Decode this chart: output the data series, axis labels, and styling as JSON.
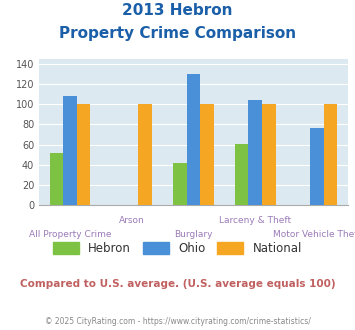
{
  "title_line1": "2013 Hebron",
  "title_line2": "Property Crime Comparison",
  "categories": [
    "All Property Crime",
    "Arson",
    "Burglary",
    "Larceny & Theft",
    "Motor Vehicle Theft"
  ],
  "x_labels_top": [
    "",
    "Arson",
    "",
    "Larceny & Theft",
    ""
  ],
  "x_labels_bottom": [
    "All Property Crime",
    "",
    "Burglary",
    "",
    "Motor Vehicle Theft"
  ],
  "series": {
    "Hebron": [
      52,
      0,
      42,
      61,
      0
    ],
    "Ohio": [
      108,
      0,
      130,
      104,
      76
    ],
    "National": [
      100,
      100,
      100,
      100,
      100
    ]
  },
  "colors": {
    "Hebron": "#7dc242",
    "Ohio": "#4a90d9",
    "National": "#f5a623"
  },
  "ylim": [
    0,
    145
  ],
  "yticks": [
    0,
    20,
    40,
    60,
    80,
    100,
    120,
    140
  ],
  "plot_bg": "#dce9f0",
  "title_color": "#1a5fa8",
  "xlabel_color": "#9b7bb8",
  "footer_text": "Compared to U.S. average. (U.S. average equals 100)",
  "copyright_text": "© 2025 CityRating.com - https://www.cityrating.com/crime-statistics/",
  "footer_color": "#c06060",
  "copyright_color": "#888888"
}
